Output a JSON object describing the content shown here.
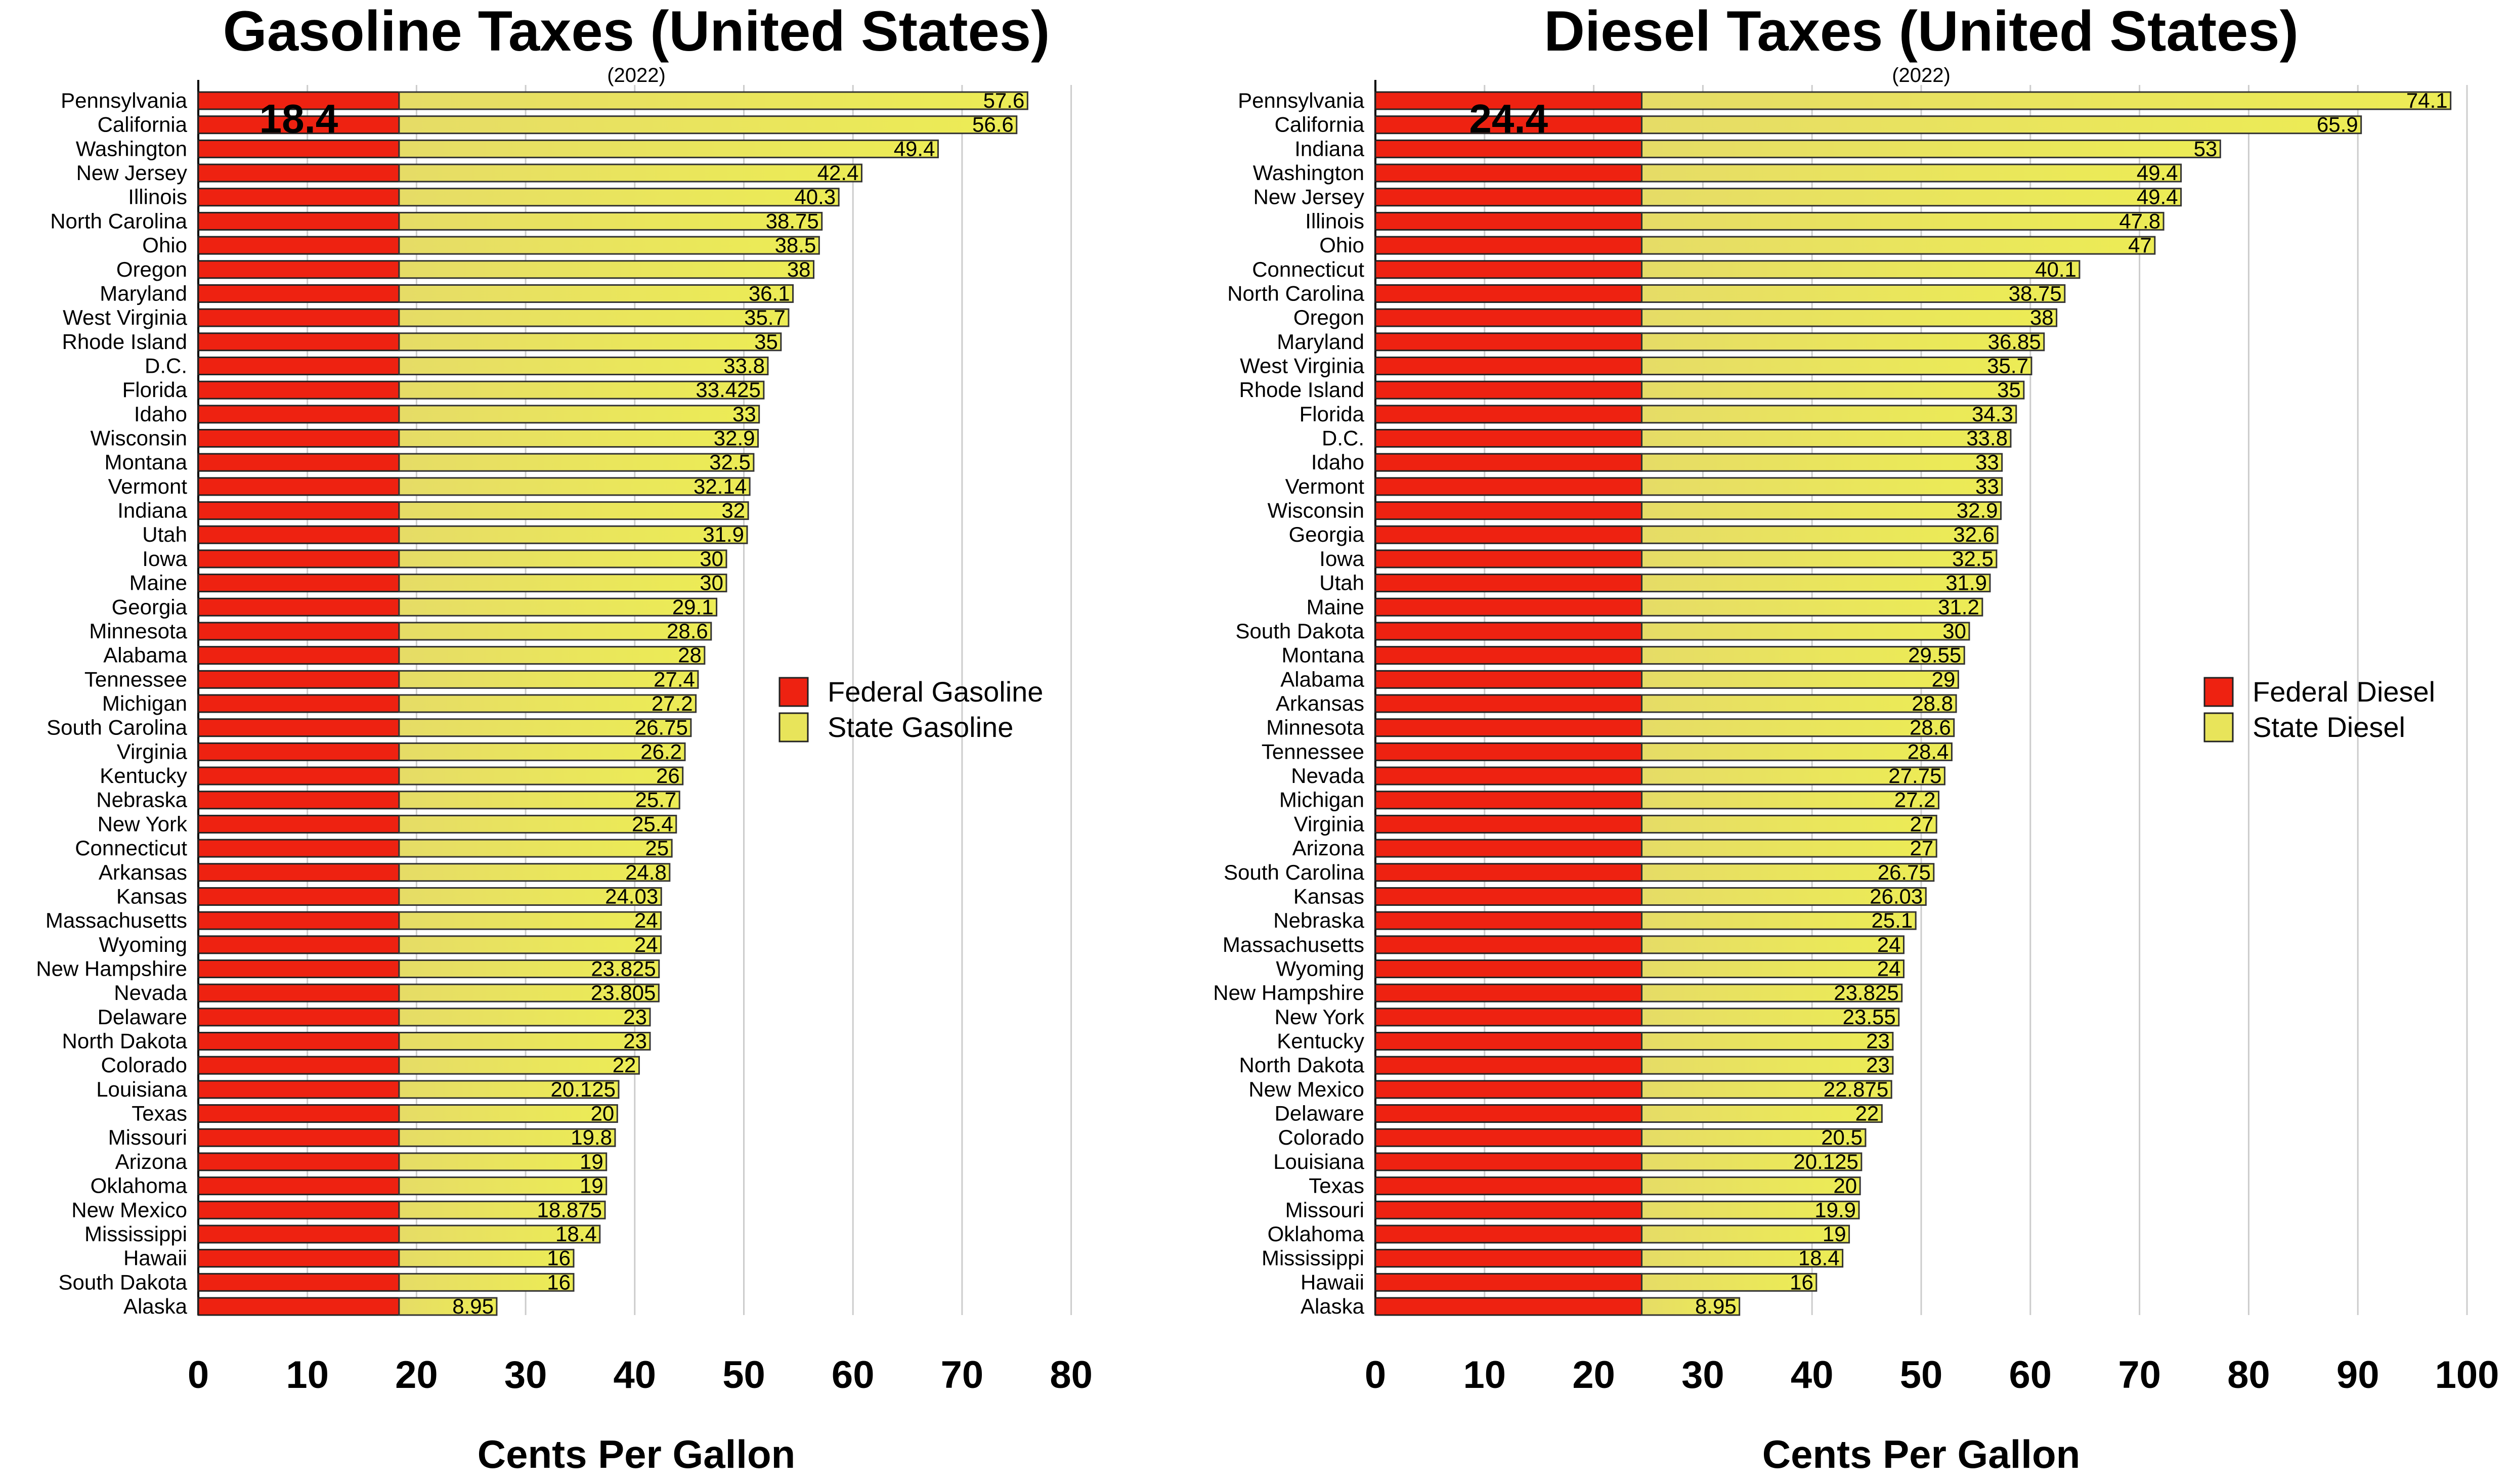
{
  "chart_data": [
    {
      "type": "bar",
      "orientation": "horizontal",
      "stacked": true,
      "title": "Gasoline Taxes (United States)",
      "subtitle": "(2022)",
      "xlabel": "Cents Per Gallon",
      "ylabel": "",
      "xlim": [
        0,
        80
      ],
      "xticks": [
        0,
        10,
        20,
        30,
        40,
        50,
        60,
        70,
        80
      ],
      "grid": true,
      "legend_position": "right",
      "federal_label": "18.4",
      "categories": [
        "Pennsylvania",
        "California",
        "Washington",
        "New Jersey",
        "Illinois",
        "North Carolina",
        "Ohio",
        "Oregon",
        "Maryland",
        "West Virginia",
        "Rhode Island",
        "D.C.",
        "Florida",
        "Idaho",
        "Wisconsin",
        "Montana",
        "Vermont",
        "Indiana",
        "Utah",
        "Iowa",
        "Maine",
        "Georgia",
        "Minnesota",
        "Alabama",
        "Tennessee",
        "Michigan",
        "South Carolina",
        "Virginia",
        "Kentucky",
        "Nebraska",
        "New York",
        "Connecticut",
        "Arkansas",
        "Kansas",
        "Massachusetts",
        "Wyoming",
        "New Hampshire",
        "Nevada",
        "Delaware",
        "North Dakota",
        "Colorado",
        "Louisiana",
        "Texas",
        "Missouri",
        "Arizona",
        "Oklahoma",
        "New Mexico",
        "Mississippi",
        "Hawaii",
        "South Dakota",
        "Alaska"
      ],
      "series": [
        {
          "name": "Federal Gasoline",
          "color": "#ee2211",
          "constant": 18.4
        },
        {
          "name": "State Gasoline",
          "color": "#e8e45a",
          "values": [
            57.6,
            56.6,
            49.4,
            42.4,
            40.3,
            38.75,
            38.5,
            38,
            36.1,
            35.7,
            35,
            33.8,
            33.425,
            33,
            32.9,
            32.5,
            32.14,
            32,
            31.9,
            30,
            30,
            29.1,
            28.6,
            28,
            27.4,
            27.2,
            26.75,
            26.2,
            26,
            25.7,
            25.4,
            25,
            24.8,
            24.03,
            24,
            24,
            23.825,
            23.805,
            23,
            23,
            22,
            20.125,
            20,
            19.8,
            19,
            19,
            18.875,
            18.4,
            16,
            16,
            8.95
          ]
        }
      ]
    },
    {
      "type": "bar",
      "orientation": "horizontal",
      "stacked": true,
      "title": "Diesel Taxes (United States)",
      "subtitle": "(2022)",
      "xlabel": "Cents Per Gallon",
      "ylabel": "",
      "xlim": [
        0,
        100
      ],
      "xticks": [
        0,
        10,
        20,
        30,
        40,
        50,
        60,
        70,
        80,
        90,
        100
      ],
      "grid": true,
      "legend_position": "right",
      "federal_label": "24.4",
      "categories": [
        "Pennsylvania",
        "California",
        "Indiana",
        "Washington",
        "New Jersey",
        "Illinois",
        "Ohio",
        "Connecticut",
        "North Carolina",
        "Oregon",
        "Maryland",
        "West Virginia",
        "Rhode Island",
        "Florida",
        "D.C.",
        "Idaho",
        "Vermont",
        "Wisconsin",
        "Georgia",
        "Iowa",
        "Utah",
        "Maine",
        "South Dakota",
        "Montana",
        "Alabama",
        "Arkansas",
        "Minnesota",
        "Tennessee",
        "Nevada",
        "Michigan",
        "Virginia",
        "Arizona",
        "South Carolina",
        "Kansas",
        "Nebraska",
        "Massachusetts",
        "Wyoming",
        "New Hampshire",
        "New York",
        "Kentucky",
        "North Dakota",
        "New Mexico",
        "Delaware",
        "Colorado",
        "Louisiana",
        "Texas",
        "Missouri",
        "Oklahoma",
        "Mississippi",
        "Hawaii",
        "Alaska"
      ],
      "series": [
        {
          "name": "Federal Diesel",
          "color": "#ee2211",
          "constant": 24.4
        },
        {
          "name": "State Diesel",
          "color": "#e8e45a",
          "values": [
            74.1,
            65.9,
            53,
            49.4,
            49.4,
            47.8,
            47,
            40.1,
            38.75,
            38,
            36.85,
            35.7,
            35,
            34.3,
            33.8,
            33,
            33,
            32.9,
            32.6,
            32.5,
            31.9,
            31.2,
            30,
            29.55,
            29,
            28.8,
            28.6,
            28.4,
            27.75,
            27.2,
            27,
            27,
            26.75,
            26.03,
            25.1,
            24,
            24,
            23.825,
            23.55,
            23,
            23,
            22.875,
            22,
            20.5,
            20.125,
            20,
            19.9,
            19,
            18.4,
            16,
            8.95
          ]
        }
      ]
    }
  ]
}
